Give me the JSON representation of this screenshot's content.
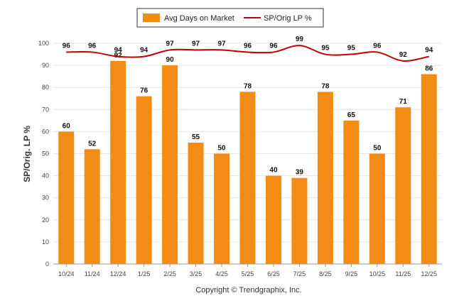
{
  "chart_data": {
    "type": "bar",
    "categories": [
      "10/24",
      "11/24",
      "12/24",
      "1/25",
      "2/25",
      "3/25",
      "4/25",
      "5/25",
      "6/25",
      "7/25",
      "8/25",
      "9/25",
      "10/25",
      "11/25",
      "12/25"
    ],
    "series": [
      {
        "name": "Avg Days on Market",
        "type": "bar",
        "color": "#f28c14",
        "values": [
          60,
          52,
          92,
          76,
          90,
          55,
          50,
          78,
          40,
          39,
          78,
          65,
          50,
          71,
          86
        ]
      },
      {
        "name": "SP/Orig LP %",
        "type": "line",
        "color": "#c00000",
        "values": [
          96,
          96,
          94,
          94,
          97,
          97,
          97,
          96,
          96,
          99,
          95,
          95,
          96,
          92,
          94
        ]
      }
    ],
    "ylabel": "SP/Orig. LP %",
    "ylim": [
      0,
      100
    ],
    "yticks": [
      0,
      10,
      20,
      30,
      40,
      50,
      60,
      70,
      80,
      90,
      100
    ],
    "grid": true,
    "legend_position": "top-center"
  },
  "footer": {
    "copyright": "Copyright © Trendgraphix, Inc."
  }
}
